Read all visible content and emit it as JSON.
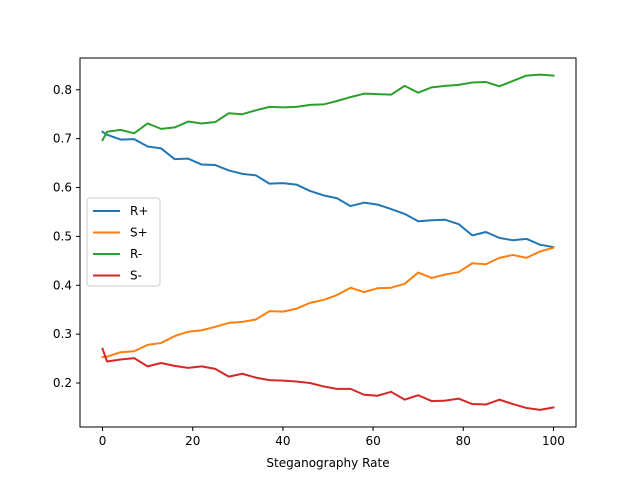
{
  "chart_data": {
    "type": "line",
    "title": "",
    "xlabel": "Steganography Rate",
    "ylabel": "",
    "xlim": [
      -5,
      105
    ],
    "ylim": [
      0.11,
      0.865
    ],
    "xticks": [
      0,
      20,
      40,
      60,
      80,
      100
    ],
    "yticks": [
      0.2,
      0.3,
      0.4,
      0.5,
      0.6,
      0.7,
      0.8
    ],
    "grid": false,
    "legend_position": "center-left",
    "x": [
      0,
      1,
      4,
      7,
      10,
      13,
      16,
      19,
      22,
      25,
      28,
      31,
      34,
      37,
      40,
      43,
      46,
      49,
      52,
      55,
      58,
      61,
      64,
      67,
      70,
      73,
      76,
      79,
      82,
      85,
      88,
      91,
      94,
      97,
      100
    ],
    "series": [
      {
        "name": "R+",
        "color": "#1f77b4",
        "values": [
          0.714,
          0.708,
          0.698,
          0.699,
          0.684,
          0.68,
          0.658,
          0.659,
          0.647,
          0.646,
          0.635,
          0.628,
          0.625,
          0.608,
          0.609,
          0.606,
          0.593,
          0.584,
          0.578,
          0.562,
          0.569,
          0.565,
          0.556,
          0.546,
          0.531,
          0.533,
          0.534,
          0.525,
          0.502,
          0.509,
          0.497,
          0.492,
          0.495,
          0.483,
          0.478
        ]
      },
      {
        "name": "S+",
        "color": "#ff7f0e",
        "values": [
          0.253,
          0.254,
          0.263,
          0.265,
          0.278,
          0.282,
          0.296,
          0.305,
          0.308,
          0.315,
          0.323,
          0.325,
          0.33,
          0.347,
          0.346,
          0.352,
          0.364,
          0.37,
          0.38,
          0.395,
          0.386,
          0.394,
          0.395,
          0.403,
          0.426,
          0.415,
          0.422,
          0.427,
          0.445,
          0.443,
          0.456,
          0.462,
          0.456,
          0.469,
          0.477
        ]
      },
      {
        "name": "R-",
        "color": "#2ca02c",
        "values": [
          0.697,
          0.714,
          0.718,
          0.711,
          0.731,
          0.72,
          0.723,
          0.735,
          0.731,
          0.734,
          0.752,
          0.75,
          0.758,
          0.765,
          0.764,
          0.765,
          0.769,
          0.77,
          0.777,
          0.785,
          0.792,
          0.791,
          0.79,
          0.808,
          0.794,
          0.805,
          0.808,
          0.81,
          0.815,
          0.816,
          0.807,
          0.818,
          0.829,
          0.831,
          0.829
        ]
      },
      {
        "name": "S-",
        "color": "#d62728",
        "values": [
          0.27,
          0.244,
          0.248,
          0.251,
          0.234,
          0.241,
          0.235,
          0.231,
          0.234,
          0.229,
          0.213,
          0.219,
          0.211,
          0.206,
          0.205,
          0.203,
          0.2,
          0.193,
          0.188,
          0.188,
          0.176,
          0.174,
          0.182,
          0.166,
          0.175,
          0.163,
          0.164,
          0.168,
          0.157,
          0.156,
          0.166,
          0.157,
          0.149,
          0.145,
          0.15
        ]
      }
    ]
  }
}
